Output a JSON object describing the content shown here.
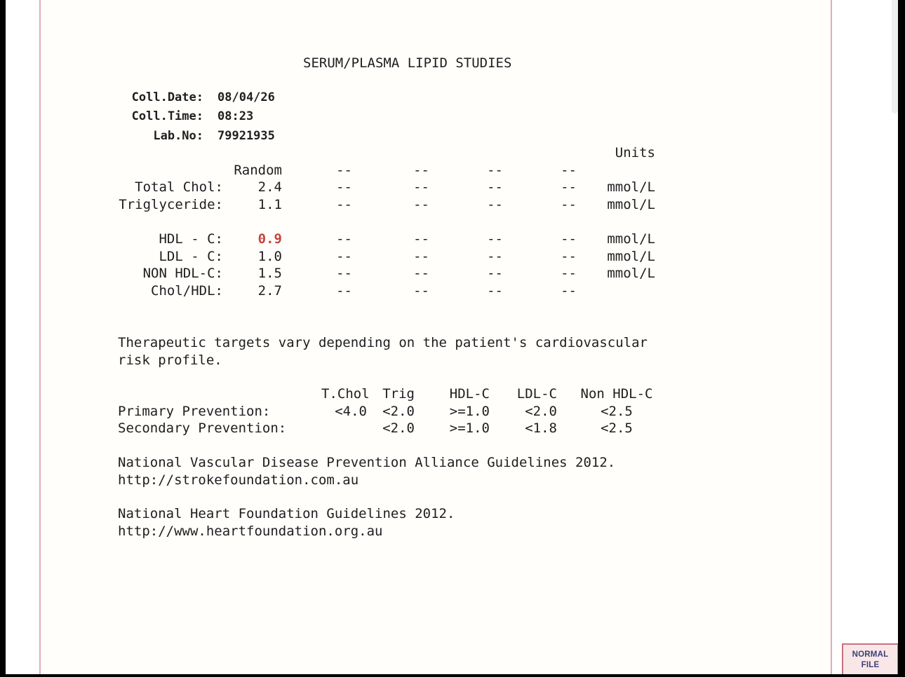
{
  "report": {
    "title": "SERUM/PLASMA LIPID STUDIES",
    "meta": [
      {
        "label": "Coll.Date:",
        "value": "08/04/26"
      },
      {
        "label": "Coll.Time:",
        "value": "08:23"
      },
      {
        "label": "Lab.No:",
        "value": "79921935"
      }
    ],
    "results": {
      "units_header": "Units",
      "column_header": "Random",
      "rows": [
        {
          "label": "",
          "value": "",
          "d1": "",
          "d2": "",
          "d3": "",
          "d4": "",
          "units": "Units",
          "flag": false
        },
        {
          "label": "",
          "value": "Random",
          "d1": "--",
          "d2": "--",
          "d3": "--",
          "d4": "--",
          "units": "",
          "flag": false
        },
        {
          "label": "Total Chol:",
          "value": "2.4",
          "d1": "--",
          "d2": "--",
          "d3": "--",
          "d4": "--",
          "units": "mmol/L",
          "flag": false
        },
        {
          "label": "Triglyceride:",
          "value": "1.1",
          "d1": "--",
          "d2": "--",
          "d3": "--",
          "d4": "--",
          "units": "mmol/L",
          "flag": false
        },
        {
          "label": "",
          "value": "",
          "d1": "",
          "d2": "",
          "d3": "",
          "d4": "",
          "units": "",
          "flag": false
        },
        {
          "label": "HDL - C:",
          "value": "0.9",
          "d1": "--",
          "d2": "--",
          "d3": "--",
          "d4": "--",
          "units": "mmol/L",
          "flag": true
        },
        {
          "label": "LDL - C:",
          "value": "1.0",
          "d1": "--",
          "d2": "--",
          "d3": "--",
          "d4": "--",
          "units": "mmol/L",
          "flag": false
        },
        {
          "label": "NON HDL-C:",
          "value": "1.5",
          "d1": "--",
          "d2": "--",
          "d3": "--",
          "d4": "--",
          "units": "mmol/L",
          "flag": false
        },
        {
          "label": "Chol/HDL:",
          "value": "2.7",
          "d1": "--",
          "d2": "--",
          "d3": "--",
          "d4": "--",
          "units": "",
          "flag": false
        }
      ]
    },
    "targets_note": "Therapeutic targets vary depending on the patient's cardiovascular\nrisk profile.",
    "prevention": {
      "rows": [
        {
          "label": "",
          "c1": "T.Chol",
          "c2": "Trig",
          "c3": "HDL-C",
          "c4": "LDL-C",
          "c5": "Non HDL-C"
        },
        {
          "label": "Primary Prevention:",
          "c1": "<4.0",
          "c2": "<2.0",
          "c3": ">=1.0",
          "c4": "<2.0",
          "c5": "<2.5"
        },
        {
          "label": "Secondary Prevention:",
          "c1": "",
          "c2": "<2.0",
          "c3": ">=1.0",
          "c4": "<1.8",
          "c5": "<2.5"
        }
      ]
    },
    "guidelines": [
      {
        "text": "National Vascular Disease Prevention Alliance Guidelines 2012.\nhttp://strokefoundation.com.au"
      },
      {
        "text": "National Heart Foundation Guidelines 2012.\nhttp://www.heartfoundation.org.au"
      }
    ]
  },
  "badge": {
    "line1": "NORMAL",
    "line2": "FILE"
  },
  "colors": {
    "margin_rule": "#e3aabb",
    "flag_value": "#c5443c",
    "badge_background": "#f9e7e7",
    "badge_border": "#c9707f",
    "badge_text": "#3a4077",
    "edge_bars": "#000000",
    "scrollbar_thumb": "#efefef"
  }
}
